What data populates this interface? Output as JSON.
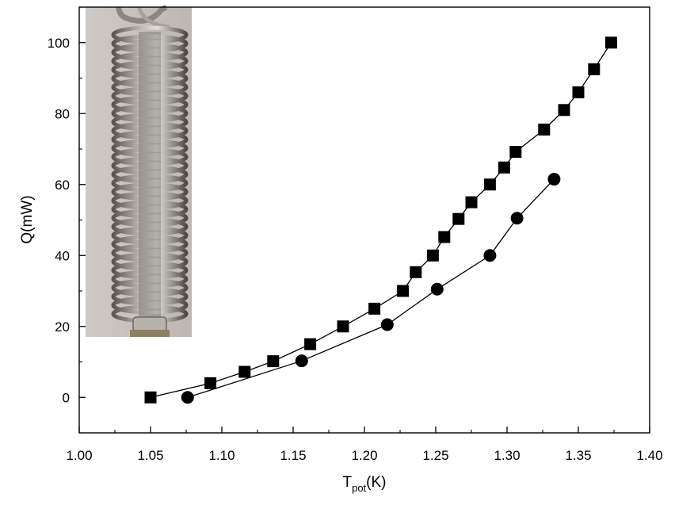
{
  "chart_data": {
    "type": "scatter",
    "title": "",
    "xlabel_main": "T",
    "xlabel_sub": "pot",
    "xlabel_unit": "(K)",
    "ylabel": "Q(mW)",
    "xlim": [
      1.0,
      1.4
    ],
    "ylim": [
      -10,
      110
    ],
    "xticks": [
      "1.00",
      "1.05",
      "1.10",
      "1.15",
      "1.20",
      "1.25",
      "1.30",
      "1.35",
      "1.40"
    ],
    "yticks": [
      "0",
      "20",
      "40",
      "60",
      "80",
      "100"
    ],
    "grid": false,
    "legend": "none",
    "inset": "photo of a tightly wound metal coil spring",
    "series": [
      {
        "marker": "square",
        "color": "#000000",
        "x": [
          1.05,
          1.092,
          1.116,
          1.136,
          1.162,
          1.185,
          1.207,
          1.227,
          1.236,
          1.248,
          1.256,
          1.266,
          1.275,
          1.288,
          1.298,
          1.306,
          1.326,
          1.34,
          1.35,
          1.361,
          1.373
        ],
        "y": [
          0.0,
          4.0,
          7.2,
          10.2,
          15.0,
          20.0,
          25.0,
          30.0,
          35.3,
          40.0,
          45.2,
          50.3,
          55.0,
          60.0,
          64.8,
          69.2,
          75.5,
          81.0,
          86.0,
          92.5,
          100.0
        ]
      },
      {
        "marker": "circle",
        "color": "#000000",
        "x": [
          1.076,
          1.156,
          1.216,
          1.251,
          1.288,
          1.307,
          1.333
        ],
        "y": [
          0.0,
          10.3,
          20.5,
          30.5,
          40.0,
          50.5,
          61.5
        ]
      }
    ]
  }
}
